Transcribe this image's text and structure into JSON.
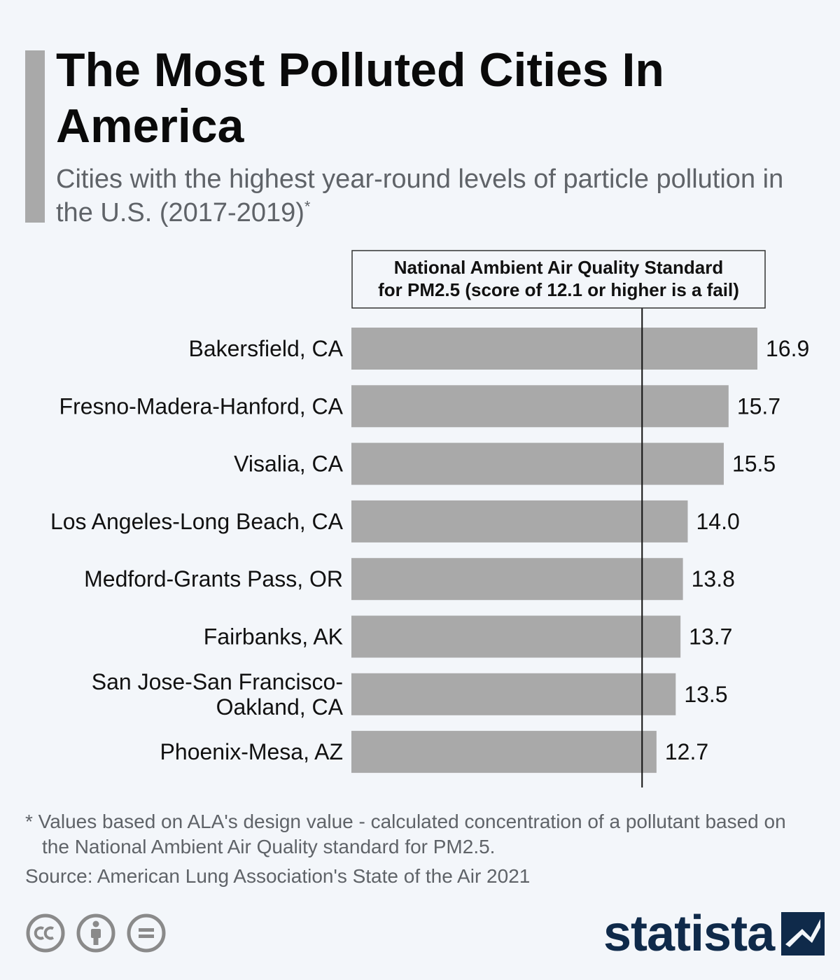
{
  "header": {
    "title": "The Most Polluted Cities In America",
    "subtitle": "Cities with the highest year-round levels of particle pollution in the U.S. (2017-2019)",
    "subtitle_mark": "*"
  },
  "chart_data": {
    "type": "bar",
    "orientation": "horizontal",
    "categories": [
      [
        "Bakersfield, CA"
      ],
      [
        "Fresno-Madera-Hanford, CA"
      ],
      [
        "Visalia, CA"
      ],
      [
        "Los Angeles-Long Beach, CA"
      ],
      [
        "Medford-Grants Pass, OR"
      ],
      [
        "Fairbanks, AK"
      ],
      [
        "San Jose-San Francisco-",
        "Oakland, CA"
      ],
      [
        "Phoenix-Mesa, AZ"
      ]
    ],
    "values": [
      16.9,
      15.7,
      15.5,
      14.0,
      13.8,
      13.7,
      13.5,
      12.7
    ],
    "value_labels": [
      "16.9",
      "15.7",
      "15.5",
      "14.0",
      "13.8",
      "13.7",
      "13.5",
      "12.7"
    ],
    "xlim": [
      0,
      16.9
    ],
    "bar_color": "#a9a9a9",
    "reference_line": {
      "value": 12.1,
      "label_lines": [
        "National Ambient Air Quality Standard",
        "for PM2.5 (score of 12.1 or higher is a fail)"
      ]
    }
  },
  "footer": {
    "footnote": "* Values based on ALA's design value - calculated concentration of a pollutant based on the National Ambient Air Quality standard for PM2.5.",
    "source": "Source: American Lung Association's State of the Air 2021",
    "brand": "statista"
  },
  "colors": {
    "background": "#f3f6fa",
    "bar": "#a9a9a9",
    "brand": "#0f2a4a",
    "muted_text": "#5f6368"
  },
  "icons": [
    "cc-icon",
    "attribution-icon",
    "no-derivatives-icon",
    "statista-logo-icon"
  ]
}
